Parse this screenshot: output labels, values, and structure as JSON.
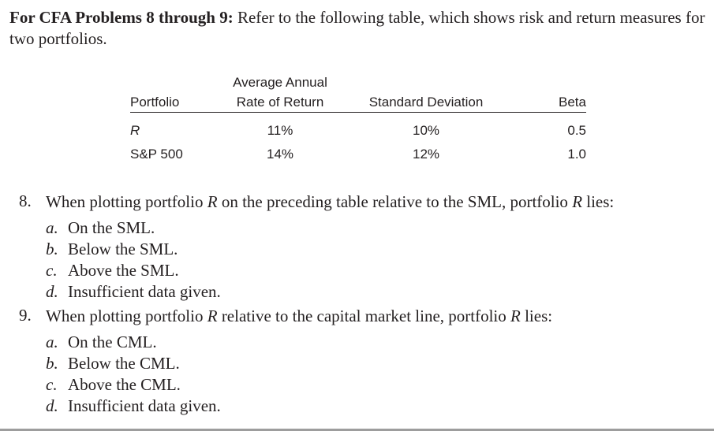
{
  "intro": {
    "lead": "For CFA Problems 8 through 9:",
    "text": " Refer to the following table, which shows risk and return measures for two portfolios."
  },
  "table": {
    "headers": {
      "portfolio": "Portfolio",
      "return_line1": "Average Annual",
      "return_line2": "Rate of Return",
      "std_dev": "Standard Deviation",
      "beta": "Beta"
    },
    "rows": [
      {
        "portfolio": "R",
        "return": "11%",
        "std_dev": "10%",
        "beta": "0.5"
      },
      {
        "portfolio": "S&P 500",
        "return": "14%",
        "std_dev": "12%",
        "beta": "1.0"
      }
    ]
  },
  "questions": [
    {
      "number": "8.",
      "text_a": "When plotting portfolio ",
      "var1": "R",
      "text_b": " on the preceding table relative to the SML, portfolio ",
      "var2": "R",
      "text_c": " lies:",
      "options": [
        {
          "letter": "a.",
          "text": "On the SML."
        },
        {
          "letter": "b.",
          "text": "Below the SML."
        },
        {
          "letter": "c.",
          "text": "Above the SML."
        },
        {
          "letter": "d.",
          "text": "Insufficient data given."
        }
      ]
    },
    {
      "number": "9.",
      "text_a": "When plotting portfolio ",
      "var1": "R",
      "text_b": " relative to the capital market line, portfolio ",
      "var2": "R",
      "text_c": " lies:",
      "options": [
        {
          "letter": "a.",
          "text": "On the CML."
        },
        {
          "letter": "b.",
          "text": "Below the CML."
        },
        {
          "letter": "c.",
          "text": "Above the CML."
        },
        {
          "letter": "d.",
          "text": "Insufficient data given."
        }
      ]
    }
  ]
}
